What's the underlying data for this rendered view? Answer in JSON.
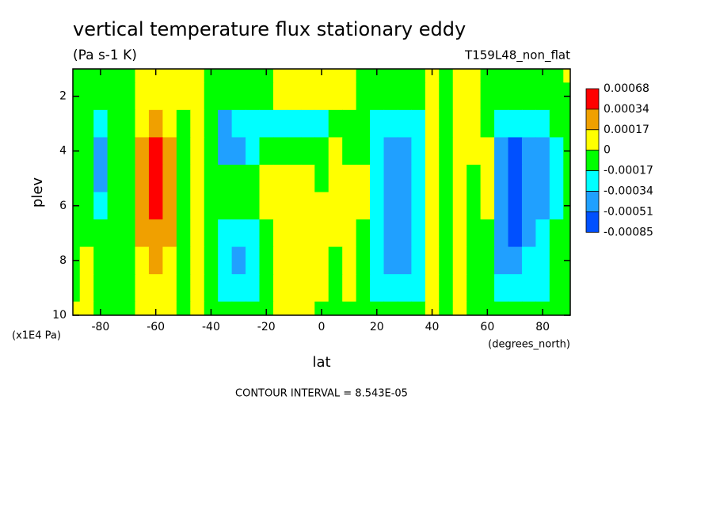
{
  "chart_data": {
    "type": "contour",
    "title": "vertical temperature flux stationary eddy",
    "subtitle": "(Pa s-1 K)",
    "run_label": "T159L48_non_flat",
    "x_label": "lat",
    "x_unit": "(degrees_north)",
    "y_label": "plev",
    "y_unit": "(x1E4 Pa)",
    "note": "CONTOUR INTERVAL = 8.543E-05",
    "xlim": [
      -90,
      90
    ],
    "ylim": [
      10,
      1
    ],
    "xticks": [
      -80,
      -60,
      -40,
      -20,
      0,
      20,
      40,
      60,
      80
    ],
    "yticks": [
      2,
      4,
      6,
      8,
      10
    ],
    "levels": [
      0.00068,
      0.00034,
      0.00017,
      0,
      -0.00017,
      -0.00034,
      -0.00051,
      -0.00085
    ],
    "colors": [
      "#ff0000",
      "#f0a000",
      "#ffff00",
      "#00ff00",
      "#00ffff",
      "#20a0ff",
      "#0050ff"
    ],
    "x": [
      -90,
      -85,
      -80,
      -75,
      -70,
      -65,
      -60,
      -55,
      -50,
      -45,
      -40,
      -35,
      -30,
      -25,
      -20,
      -15,
      -10,
      -5,
      0,
      5,
      10,
      15,
      20,
      25,
      30,
      35,
      40,
      45,
      50,
      55,
      60,
      65,
      70,
      75,
      80,
      85,
      90
    ],
    "y": [
      1,
      2,
      3,
      4,
      5,
      6,
      7,
      8,
      9,
      10
    ],
    "z": [
      [
        -0.0001,
        -0.0001,
        -0.0001,
        -0.0001,
        -0.0001,
        0.0001,
        0.0001,
        0.0001,
        0.0001,
        0.0001,
        -0.0001,
        -0.0001,
        -0.0001,
        -0.0001,
        -0.0001,
        0.0001,
        0.0001,
        0.0001,
        0.0001,
        0.0001,
        0.0001,
        -0.0001,
        -0.0001,
        -0.0001,
        -0.0001,
        -0.0001,
        0.0001,
        -0.0001,
        0.0001,
        0.0001,
        -0.0001,
        -0.0001,
        -0.0001,
        -0.0001,
        -0.0001,
        -0.0001,
        0.0001
      ],
      [
        -0.0001,
        -0.0001,
        -0.0001,
        -0.0001,
        -0.0001,
        0.0001,
        0.0001,
        0.0001,
        0.0001,
        0.0001,
        -0.0001,
        -0.0001,
        -0.0001,
        -0.0001,
        -0.0001,
        0.0001,
        0.0001,
        0.0001,
        0.0001,
        0.0001,
        0.0001,
        -0.0001,
        -0.0001,
        -0.0001,
        -0.0001,
        -0.0001,
        0.0001,
        -0.0001,
        0.0001,
        0.0001,
        -0.0001,
        -0.0001,
        -0.0001,
        -0.0001,
        -0.0001,
        -0.0001,
        -0.0001
      ],
      [
        -0.0001,
        -0.0001,
        -0.00025,
        -0.0001,
        -0.0001,
        0.0001,
        0.00025,
        0.0001,
        -0.0001,
        0.0001,
        -0.0001,
        -0.0004,
        -0.00025,
        -0.00025,
        -0.00025,
        -0.00025,
        -0.00025,
        -0.00025,
        -0.00025,
        -0.0001,
        -0.0001,
        -0.0001,
        -0.00025,
        -0.00025,
        -0.00025,
        -0.00025,
        0.0001,
        -0.0001,
        0.0001,
        0.0001,
        -0.0001,
        -0.00025,
        -0.00025,
        -0.00025,
        -0.00025,
        -0.0001,
        -0.0001
      ],
      [
        -0.0001,
        -0.0001,
        -0.0004,
        -0.0001,
        -0.0001,
        0.00025,
        0.0005,
        0.00025,
        -0.0001,
        0.0001,
        -0.0001,
        -0.0004,
        -0.0004,
        -0.00025,
        -0.0001,
        -0.0001,
        -0.0001,
        -0.0001,
        -0.0001,
        0.0001,
        -0.0001,
        -0.0001,
        -0.00025,
        -0.0004,
        -0.0004,
        -0.00025,
        0.0001,
        -0.0001,
        0.0001,
        0.0001,
        0.0001,
        -0.0004,
        -0.0006,
        -0.0004,
        -0.0004,
        -0.00025,
        -0.0001
      ],
      [
        -0.0001,
        -0.0001,
        -0.0004,
        -0.0001,
        -0.0001,
        0.00025,
        0.0005,
        0.00025,
        -0.0001,
        0.0001,
        -0.0001,
        -0.0001,
        -0.0001,
        -0.0001,
        0.0001,
        0.0001,
        0.0001,
        0.0001,
        -0.0001,
        0.0001,
        0.0001,
        0.0001,
        -0.00025,
        -0.0004,
        -0.0004,
        -0.00025,
        0.0001,
        -0.0001,
        0.0001,
        -0.0001,
        0.0001,
        -0.0004,
        -0.0006,
        -0.0004,
        -0.0004,
        -0.00025,
        -0.0001
      ],
      [
        -0.0001,
        -0.0001,
        -0.00025,
        -0.0001,
        -0.0001,
        0.00025,
        0.0005,
        0.00025,
        -0.0001,
        0.0001,
        -0.0001,
        -0.0001,
        -0.0001,
        -0.0001,
        0.0001,
        0.0001,
        0.0001,
        0.0001,
        0.0001,
        0.0001,
        0.0001,
        0.0001,
        -0.00025,
        -0.0004,
        -0.0004,
        -0.00025,
        0.0001,
        -0.0001,
        0.0001,
        -0.0001,
        0.0001,
        -0.0004,
        -0.0006,
        -0.0004,
        -0.0004,
        -0.00025,
        -0.0001
      ],
      [
        -0.0001,
        -0.0001,
        -0.0001,
        -0.0001,
        -0.0001,
        0.00025,
        0.00025,
        0.00025,
        -0.0001,
        0.0001,
        -0.0001,
        -0.00025,
        -0.00025,
        -0.00025,
        -0.0001,
        0.0001,
        0.0001,
        0.0001,
        0.0001,
        0.0001,
        0.0001,
        -0.0001,
        -0.00025,
        -0.0004,
        -0.0004,
        -0.00025,
        0.0001,
        -0.0001,
        0.0001,
        -0.0001,
        -0.0001,
        -0.0004,
        -0.0006,
        -0.0004,
        -0.00025,
        -0.0001,
        -0.0001
      ],
      [
        -0.0001,
        0.0001,
        -0.0001,
        -0.0001,
        -0.0001,
        0.0001,
        0.00025,
        0.0001,
        -0.0001,
        0.0001,
        -0.0001,
        -0.00025,
        -0.0004,
        -0.00025,
        -0.0001,
        0.0001,
        0.0001,
        0.0001,
        0.0001,
        -0.0001,
        0.0001,
        -0.0001,
        -0.00025,
        -0.0004,
        -0.0004,
        -0.00025,
        0.0001,
        -0.0001,
        0.0001,
        -0.0001,
        -0.0001,
        -0.0004,
        -0.0004,
        -0.00025,
        -0.00025,
        -0.0001,
        -0.0001
      ],
      [
        -0.0001,
        0.0001,
        -0.0001,
        -0.0001,
        -0.0001,
        0.0001,
        0.0001,
        0.0001,
        -0.0001,
        0.0001,
        -0.0001,
        -0.00025,
        -0.00025,
        -0.00025,
        -0.0001,
        0.0001,
        0.0001,
        0.0001,
        0.0001,
        -0.0001,
        0.0001,
        -0.0001,
        -0.00025,
        -0.00025,
        -0.00025,
        -0.00025,
        0.0001,
        -0.0001,
        0.0001,
        -0.0001,
        -0.0001,
        -0.00025,
        -0.00025,
        -0.00025,
        -0.00025,
        -0.0001,
        -0.0001
      ],
      [
        0.0001,
        0.0001,
        -0.0001,
        -0.0001,
        -0.0001,
        0.0001,
        0.0001,
        0.0001,
        -0.0001,
        0.0001,
        -0.0001,
        -0.0001,
        -0.0001,
        -0.0001,
        -0.0001,
        0.0001,
        0.0001,
        0.0001,
        -0.0001,
        -0.0001,
        -0.0001,
        -0.0001,
        -0.0001,
        -0.0001,
        -0.0001,
        -0.0001,
        0.0001,
        -0.0001,
        0.0001,
        -0.0001,
        -0.0001,
        -0.0001,
        -0.0001,
        -0.0001,
        -0.0001,
        -0.0001,
        -0.0001
      ]
    ]
  }
}
